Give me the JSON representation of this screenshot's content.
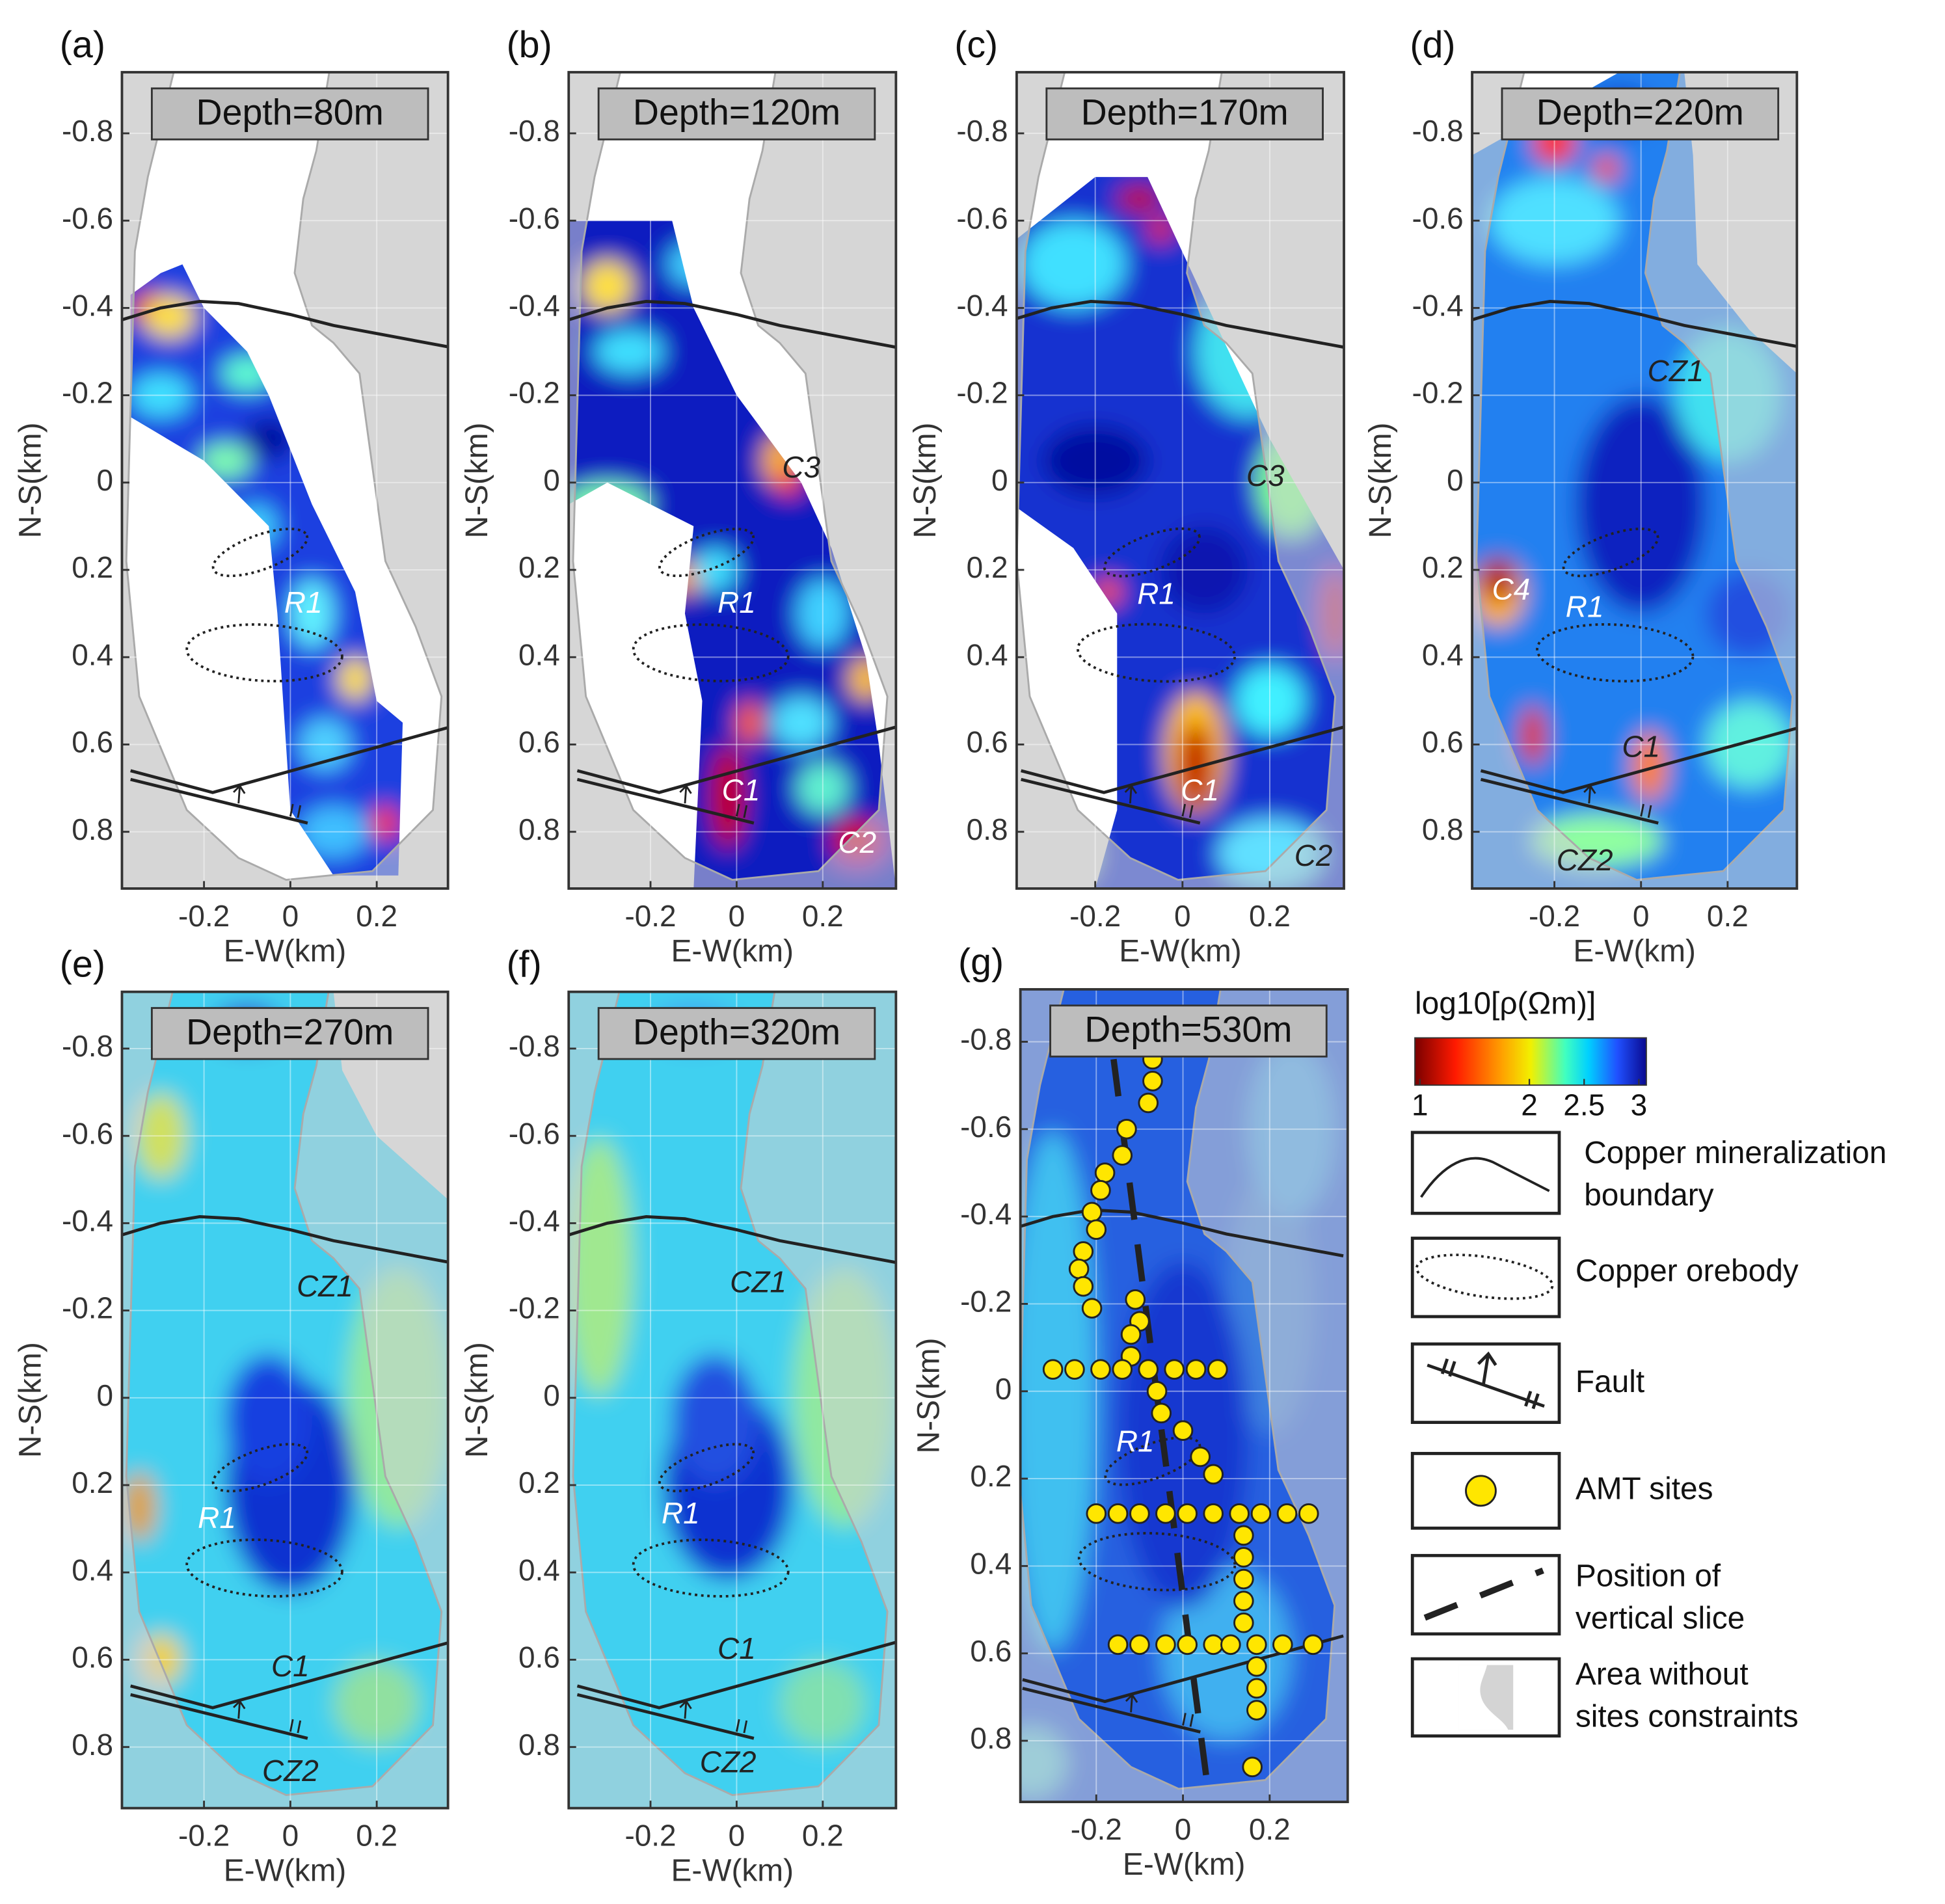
{
  "chart_data": [
    {
      "type": "heatmap",
      "label": "(a)",
      "title": "Depth=80m",
      "xlabel": "E-W(km)",
      "ylabel": "N-S(km)",
      "xlim": [
        -0.39,
        0.365
      ],
      "ylim": [
        -0.94,
        0.93
      ],
      "xticks": [
        -0.2,
        0,
        0.2
      ],
      "yticks": [
        -0.8,
        -0.6,
        -0.4,
        -0.2,
        0,
        0.2,
        0.4,
        0.6,
        0.8
      ],
      "grid": true,
      "annotations": [
        "R1"
      ]
    },
    {
      "type": "heatmap",
      "label": "(b)",
      "title": "Depth=120m",
      "xlabel": "E-W(km)",
      "ylabel": "N-S(km)",
      "xlim": [
        -0.39,
        0.37
      ],
      "ylim": [
        -0.94,
        0.93
      ],
      "xticks": [
        -0.2,
        0,
        0.2
      ],
      "yticks": [
        -0.8,
        -0.6,
        -0.4,
        -0.2,
        0,
        0.2,
        0.4,
        0.6,
        0.8
      ],
      "grid": true,
      "annotations": [
        "C3",
        "R1",
        "C1",
        "C2"
      ]
    },
    {
      "type": "heatmap",
      "label": "(c)",
      "title": "Depth=170m",
      "xlabel": "E-W(km)",
      "ylabel": "N-S(km)",
      "xlim": [
        -0.38,
        0.37
      ],
      "ylim": [
        -0.94,
        0.93
      ],
      "xticks": [
        -0.2,
        0,
        0.2
      ],
      "yticks": [
        -0.8,
        -0.6,
        -0.4,
        -0.2,
        0,
        0.2,
        0.4,
        0.6,
        0.8
      ],
      "grid": true,
      "annotations": [
        "C3",
        "R1",
        "C1",
        "C2"
      ]
    },
    {
      "type": "heatmap",
      "label": "(d)",
      "title": "Depth=220m",
      "xlabel": "E-W(km)",
      "ylabel": "N-S(km)",
      "xlim": [
        -0.39,
        0.36
      ],
      "ylim": [
        -0.94,
        0.93
      ],
      "xticks": [
        -0.2,
        0,
        0.2
      ],
      "yticks": [
        -0.8,
        -0.6,
        -0.4,
        -0.2,
        0,
        0.2,
        0.4,
        0.6,
        0.8
      ],
      "grid": true,
      "annotations": [
        "CZ1",
        "C4",
        "R1",
        "C1",
        "CZ2"
      ]
    },
    {
      "type": "heatmap",
      "label": "(e)",
      "title": "Depth=270m",
      "xlabel": "E-W(km)",
      "ylabel": "N-S(km)",
      "xlim": [
        -0.39,
        0.365
      ],
      "ylim": [
        -0.93,
        0.94
      ],
      "xticks": [
        -0.2,
        0,
        0.2
      ],
      "yticks": [
        -0.8,
        -0.6,
        -0.4,
        -0.2,
        0,
        0.2,
        0.4,
        0.6,
        0.8
      ],
      "grid": true,
      "annotations": [
        "CZ1",
        "R1",
        "C1",
        "CZ2"
      ]
    },
    {
      "type": "heatmap",
      "label": "(f)",
      "title": "Depth=320m",
      "xlabel": "E-W(km)",
      "ylabel": "N-S(km)",
      "xlim": [
        -0.39,
        0.37
      ],
      "ylim": [
        -0.93,
        0.94
      ],
      "xticks": [
        -0.2,
        0,
        0.2
      ],
      "yticks": [
        -0.8,
        -0.6,
        -0.4,
        -0.2,
        0,
        0.2,
        0.4,
        0.6,
        0.8
      ],
      "grid": true,
      "annotations": [
        "CZ1",
        "R1",
        "C1",
        "CZ2"
      ]
    },
    {
      "type": "heatmap",
      "label": "(g)",
      "title": "Depth=530m",
      "xlabel": "E-W(km)",
      "ylabel": "N-S(km)",
      "xlim": [
        -0.375,
        0.38
      ],
      "ylim": [
        -0.92,
        0.94
      ],
      "xticks": [
        -0.2,
        0,
        0.2
      ],
      "yticks": [
        -0.8,
        -0.6,
        -0.4,
        -0.2,
        0,
        0.2,
        0.4,
        0.6,
        0.8
      ],
      "grid": true,
      "annotations": [
        "R1"
      ],
      "sites": {
        "x": [
          -0.07,
          -0.07,
          -0.08,
          -0.13,
          -0.14,
          -0.18,
          -0.19,
          -0.21,
          -0.2,
          -0.23,
          -0.24,
          -0.23,
          -0.21,
          -0.11,
          -0.1,
          -0.12,
          -0.12,
          -0.3,
          -0.25,
          -0.19,
          -0.14,
          -0.08,
          -0.02,
          0.03,
          0.08,
          -0.06,
          -0.05,
          0.0,
          0.04,
          0.07,
          -0.2,
          -0.15,
          -0.1,
          -0.04,
          0.01,
          0.07,
          0.13,
          0.18,
          0.24,
          0.29,
          0.14,
          0.14,
          0.14,
          0.14,
          0.14,
          -0.15,
          -0.1,
          -0.04,
          0.01,
          0.07,
          0.11,
          0.17,
          0.23,
          0.3,
          0.17,
          0.17,
          0.17,
          0.16
        ],
        "y": [
          -0.76,
          -0.71,
          -0.66,
          -0.6,
          -0.54,
          -0.5,
          -0.46,
          -0.41,
          -0.37,
          -0.32,
          -0.28,
          -0.24,
          -0.19,
          -0.21,
          -0.16,
          -0.13,
          -0.08,
          -0.05,
          -0.05,
          -0.05,
          -0.05,
          -0.05,
          -0.05,
          -0.05,
          -0.05,
          0.0,
          0.05,
          0.09,
          0.15,
          0.19,
          0.28,
          0.28,
          0.28,
          0.28,
          0.28,
          0.28,
          0.28,
          0.28,
          0.28,
          0.28,
          0.33,
          0.38,
          0.43,
          0.48,
          0.53,
          0.58,
          0.58,
          0.58,
          0.58,
          0.58,
          0.58,
          0.58,
          0.58,
          0.58,
          0.63,
          0.68,
          0.73,
          0.86
        ]
      }
    }
  ],
  "colorbar": {
    "label": "log10[ρ(Ωm)]",
    "lim": [
      1,
      3
    ],
    "ticks": [
      1,
      2,
      2.5,
      3
    ]
  },
  "legend": [
    {
      "lines": [
        "Copper mineralization",
        "boundary"
      ]
    },
    {
      "lines": [
        "Copper orebody"
      ]
    },
    {
      "lines": [
        "Fault"
      ]
    },
    {
      "lines": [
        "AMT sites"
      ]
    },
    {
      "lines": [
        "Position of",
        "vertical slice"
      ]
    },
    {
      "lines": [
        "Area without",
        "sites constraints"
      ]
    }
  ]
}
